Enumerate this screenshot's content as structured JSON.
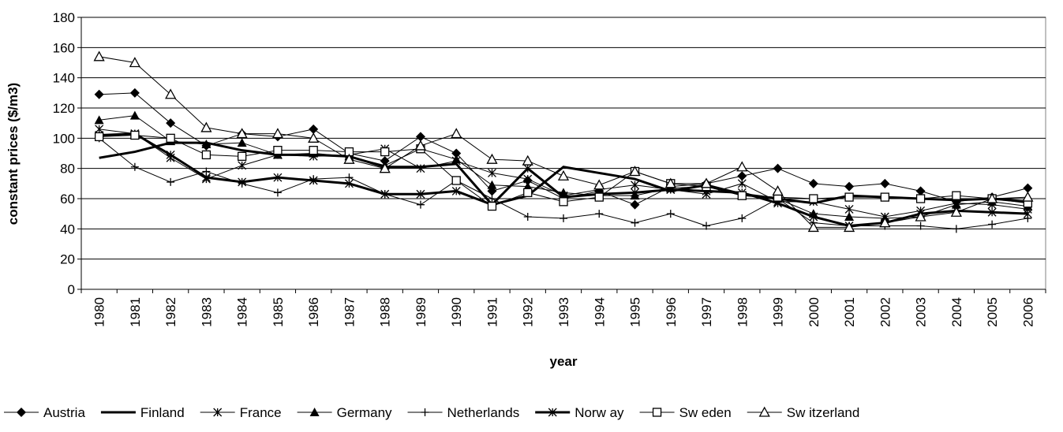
{
  "chart_data": {
    "type": "line",
    "x_label": "year",
    "y_label": "constant prices ($/m3)",
    "categories": [
      "1980",
      "1981",
      "1982",
      "1983",
      "1984",
      "1985",
      "1986",
      "1987",
      "1988",
      "1989",
      "1990",
      "1991",
      "1992",
      "1993",
      "1994",
      "1995",
      "1996",
      "1997",
      "1998",
      "1999",
      "2000",
      "2001",
      "2002",
      "2003",
      "2004",
      "2005",
      "2006"
    ],
    "ylim": [
      0,
      180
    ],
    "yticks": [
      0,
      20,
      40,
      60,
      80,
      100,
      120,
      140,
      160,
      180
    ],
    "grid": true,
    "legend": "bottom",
    "series": [
      {
        "name": "Austria",
        "color": "#000000",
        "marker": "diamond",
        "line_width": 1,
        "values": [
          129,
          130,
          110,
          95,
          103,
          101,
          106,
          90,
          85,
          101,
          90,
          65,
          72,
          60,
          65,
          56,
          68,
          70,
          75,
          80,
          70,
          68,
          70,
          65,
          58,
          61,
          67
        ]
      },
      {
        "name": "Finland",
        "color": "#000000",
        "marker": "none",
        "line_width": 3,
        "values": [
          87,
          91,
          97,
          97,
          92,
          89,
          89,
          88,
          81,
          81,
          83,
          56,
          62,
          81,
          77,
          73,
          65,
          69,
          63,
          60,
          57,
          62,
          61,
          60,
          59,
          60,
          58
        ]
      },
      {
        "name": "France",
        "color": "#000000",
        "marker": "asterisk",
        "line_width": 1,
        "values": [
          106,
          103,
          87,
          73,
          82,
          89,
          88,
          89,
          93,
          80,
          85,
          77,
          73,
          62,
          66,
          69,
          66,
          63,
          70,
          58,
          58,
          53,
          48,
          52,
          57,
          56,
          53
        ]
      },
      {
        "name": "Germany",
        "color": "#000000",
        "marker": "triangle-filled",
        "line_width": 1,
        "values": [
          112,
          115,
          98,
          96,
          97,
          89,
          90,
          88,
          82,
          93,
          86,
          69,
          68,
          64,
          62,
          62,
          67,
          68,
          62,
          60,
          50,
          48,
          47,
          48,
          56,
          58,
          55
        ]
      },
      {
        "name": "Netherlands",
        "color": "#000000",
        "marker": "plus",
        "line_width": 1,
        "values": [
          100,
          81,
          71,
          78,
          70,
          64,
          73,
          74,
          63,
          56,
          72,
          60,
          48,
          47,
          50,
          44,
          50,
          42,
          47,
          60,
          44,
          42,
          42,
          42,
          40,
          43,
          47
        ]
      },
      {
        "name": "Norw ay",
        "color": "#000000",
        "marker": "asterisk",
        "line_width": 3,
        "values": [
          102,
          103,
          89,
          74,
          71,
          74,
          72,
          70,
          63,
          63,
          65,
          56,
          80,
          61,
          63,
          64,
          66,
          65,
          64,
          57,
          48,
          42,
          44,
          50,
          52,
          51,
          50
        ]
      },
      {
        "name": "Sw eden",
        "color": "#000000",
        "marker": "square-open",
        "line_width": 1,
        "values": [
          101,
          102,
          100,
          89,
          88,
          92,
          92,
          91,
          91,
          93,
          72,
          55,
          64,
          58,
          61,
          78,
          70,
          68,
          62,
          61,
          60,
          61,
          61,
          60,
          62,
          60,
          57
        ]
      },
      {
        "name": "Sw itzerland",
        "color": "#000000",
        "marker": "triangle-open",
        "line_width": 1,
        "values": [
          154,
          150,
          129,
          107,
          103,
          103,
          100,
          86,
          80,
          95,
          103,
          86,
          85,
          75,
          69,
          78,
          70,
          70,
          81,
          65,
          41,
          41,
          44,
          48,
          51,
          60,
          61
        ]
      }
    ]
  }
}
